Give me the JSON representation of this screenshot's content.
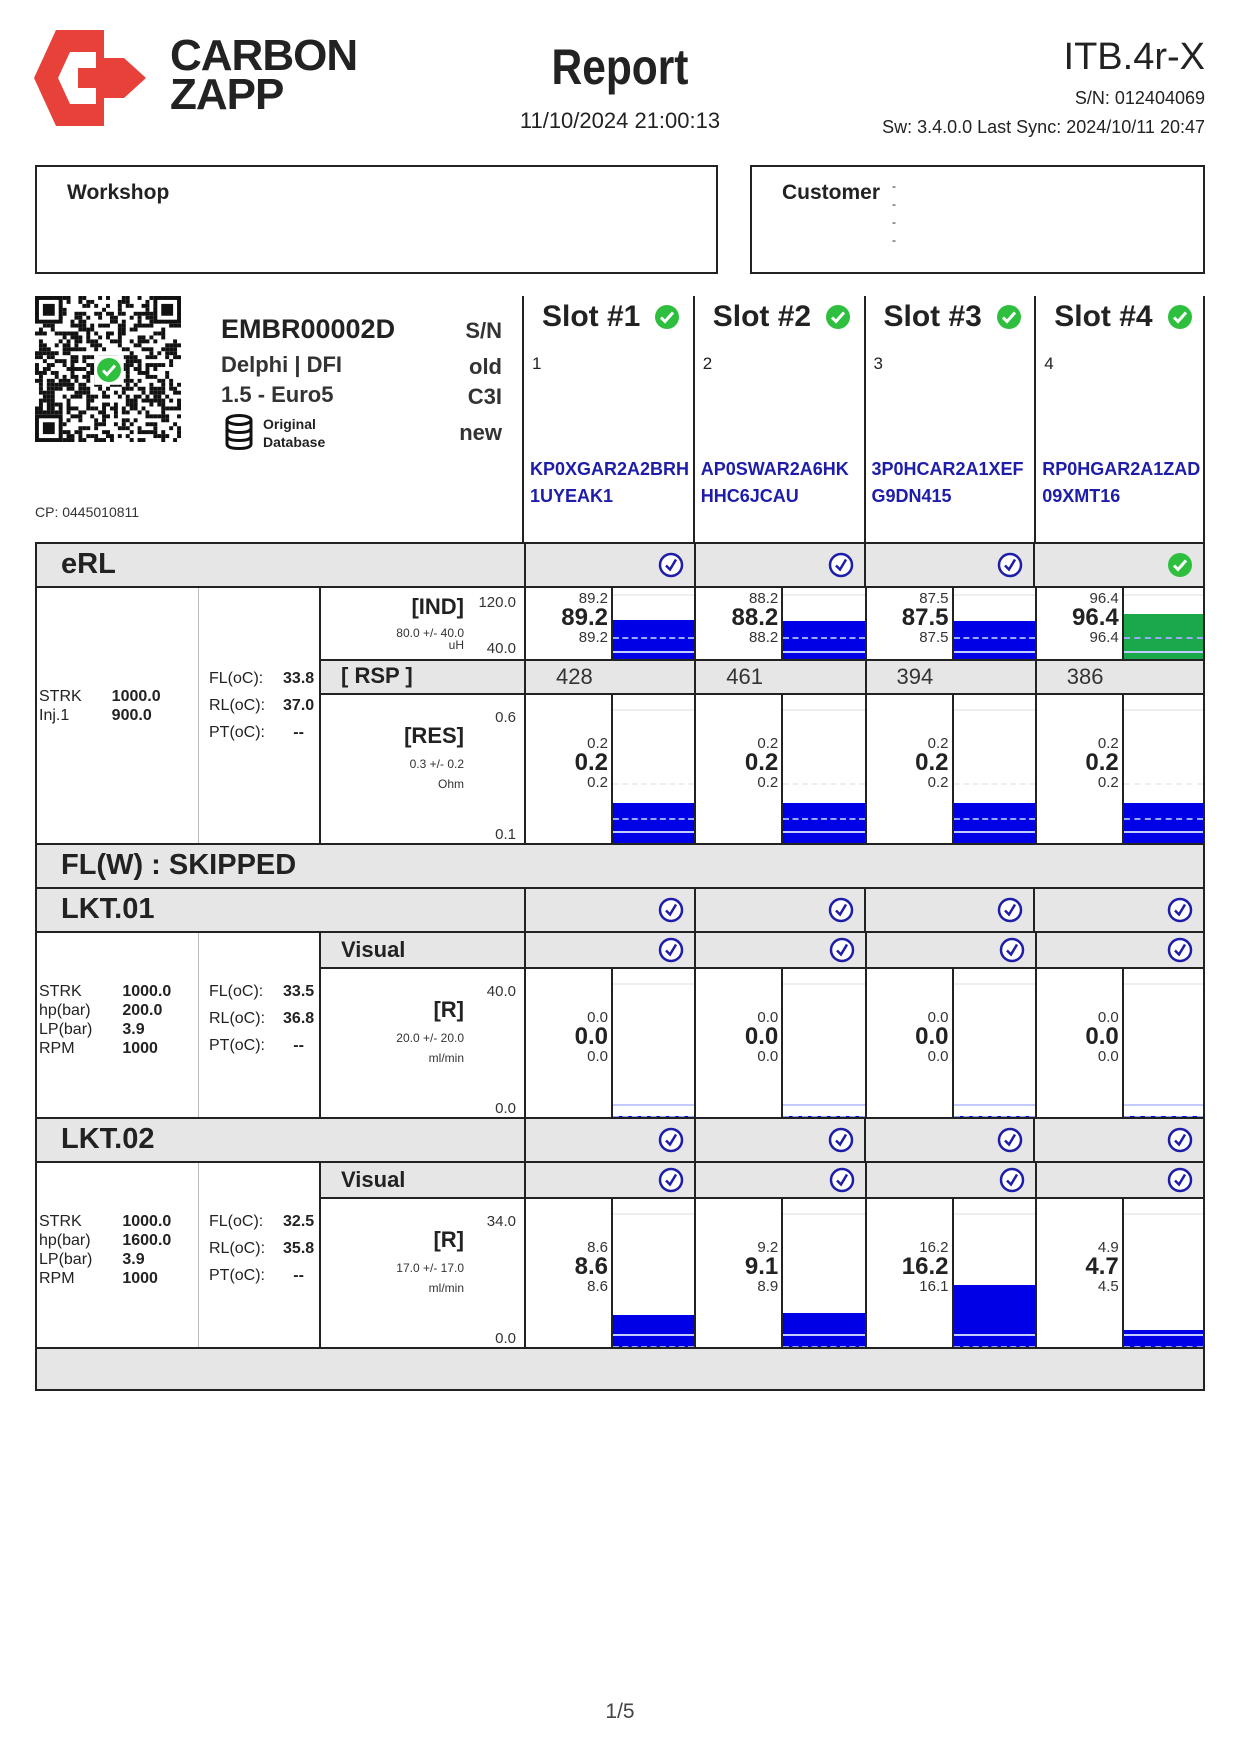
{
  "header": {
    "brand_line1": "CARBON",
    "brand_line2": "ZAPP",
    "brand_color": "#e8413a",
    "title": "Report",
    "date": "11/10/2024 21:00:13",
    "device": "ITB.4r-X",
    "serial": "S/N: 012404069",
    "software": "Sw: 3.4.0.0 Last Sync: 2024/10/11 20:47"
  },
  "workshop": {
    "label": "Workshop"
  },
  "customer": {
    "label": "Customer",
    "lines": [
      "-",
      "-",
      "-",
      "-"
    ]
  },
  "injector": {
    "code": "EMBR00002D",
    "brand": "Delphi | DFI",
    "engine": "1.5 - Euro5",
    "db_line1": "Original",
    "db_line2": "Database",
    "col_labels": [
      "S/N",
      "old",
      "C3I",
      "new"
    ],
    "cp": "CP: 0445010811",
    "qr_verified": true
  },
  "slots": [
    {
      "label": "Slot #1",
      "number": "1",
      "code": "KP0XGAR2A2BRH1UYEAK1",
      "status": "ok"
    },
    {
      "label": "Slot #2",
      "number": "2",
      "code": "AP0SWAR2A6HKHHC6JCAU",
      "status": "ok"
    },
    {
      "label": "Slot #3",
      "number": "3",
      "code": "3P0HCAR2A1XEFG9DN415",
      "status": "ok"
    },
    {
      "label": "Slot #4",
      "number": "4",
      "code": "RP0HGAR2A1ZAD09XMT16",
      "status": "ok"
    }
  ],
  "erl": {
    "title": "eRL",
    "slot_status": [
      "checked",
      "checked",
      "checked",
      "ok"
    ],
    "params": [
      [
        "STRK",
        "1000.0"
      ],
      [
        "Inj.1",
        "900.0"
      ]
    ],
    "temps": [
      [
        "FL(oC):",
        "33.8"
      ],
      [
        "RL(oC):",
        "37.0"
      ],
      [
        "PT(oC):",
        "--"
      ]
    ],
    "ind": {
      "label": "[IND]",
      "spec": "80.0 +/- 40.0",
      "unit": "uH",
      "max": "120.0",
      "min": "40.0",
      "values": [
        {
          "hi": "89.2",
          "val": "89.2",
          "lo": "89.2",
          "fill": 89.2,
          "color": "#0000e6"
        },
        {
          "hi": "88.2",
          "val": "88.2",
          "lo": "88.2",
          "fill": 88.2,
          "color": "#0000e6"
        },
        {
          "hi": "87.5",
          "val": "87.5",
          "lo": "87.5",
          "fill": 87.5,
          "color": "#0000e6"
        },
        {
          "hi": "96.4",
          "val": "96.4",
          "lo": "96.4",
          "fill": 96.4,
          "color": "#1aa84a"
        }
      ]
    },
    "rsp": {
      "label": "[ RSP ]",
      "values": [
        "428",
        "461",
        "394",
        "386"
      ]
    },
    "res": {
      "label": "[RES]",
      "spec": "0.3 +/- 0.2",
      "unit": "Ohm",
      "max": "0.6",
      "min": "0.1",
      "values": [
        {
          "hi": "0.2",
          "val": "0.2",
          "lo": "0.2",
          "fill": 0.2
        },
        {
          "hi": "0.2",
          "val": "0.2",
          "lo": "0.2",
          "fill": 0.2
        },
        {
          "hi": "0.2",
          "val": "0.2",
          "lo": "0.2",
          "fill": 0.2
        },
        {
          "hi": "0.2",
          "val": "0.2",
          "lo": "0.2",
          "fill": 0.2
        }
      ]
    }
  },
  "flw": {
    "title": "FL(W) : SKIPPED"
  },
  "lkt": [
    {
      "title": "LKT.01",
      "slot_status": [
        "checked",
        "checked",
        "checked",
        "checked"
      ],
      "visual_label": "Visual",
      "visual_status": [
        "checked",
        "checked",
        "checked",
        "checked"
      ],
      "params": [
        [
          "STRK",
          "1000.0"
        ],
        [
          "hp(bar)",
          "200.0"
        ],
        [
          "LP(bar)",
          "3.9"
        ],
        [
          "RPM",
          "1000"
        ]
      ],
      "temps": [
        [
          "FL(oC):",
          "33.5"
        ],
        [
          "RL(oC):",
          "36.8"
        ],
        [
          "PT(oC):",
          "--"
        ]
      ],
      "r": {
        "label": "[R]",
        "spec": "20.0 +/- 20.0",
        "unit": "ml/min",
        "max": "40.0",
        "min": "0.0",
        "values": [
          {
            "hi": "0.0",
            "val": "0.0",
            "lo": "0.0",
            "fill": 0.0
          },
          {
            "hi": "0.0",
            "val": "0.0",
            "lo": "0.0",
            "fill": 0.0
          },
          {
            "hi": "0.0",
            "val": "0.0",
            "lo": "0.0",
            "fill": 0.0
          },
          {
            "hi": "0.0",
            "val": "0.0",
            "lo": "0.0",
            "fill": 0.0
          }
        ]
      }
    },
    {
      "title": "LKT.02",
      "slot_status": [
        "checked",
        "checked",
        "checked",
        "checked"
      ],
      "visual_label": "Visual",
      "visual_status": [
        "checked",
        "checked",
        "checked",
        "checked"
      ],
      "params": [
        [
          "STRK",
          "1000.0"
        ],
        [
          "hp(bar)",
          "1600.0"
        ],
        [
          "LP(bar)",
          "3.9"
        ],
        [
          "RPM",
          "1000"
        ]
      ],
      "temps": [
        [
          "FL(oC):",
          "32.5"
        ],
        [
          "RL(oC):",
          "35.8"
        ],
        [
          "PT(oC):",
          "--"
        ]
      ],
      "r": {
        "label": "[R]",
        "spec": "17.0 +/- 17.0",
        "unit": "ml/min",
        "max": "34.0",
        "min": "0.0",
        "values": [
          {
            "hi": "8.6",
            "val": "8.6",
            "lo": "8.6",
            "fill": 8.6
          },
          {
            "hi": "9.2",
            "val": "9.1",
            "lo": "8.9",
            "fill": 9.1
          },
          {
            "hi": "16.2",
            "val": "16.2",
            "lo": "16.1",
            "fill": 16.2
          },
          {
            "hi": "4.9",
            "val": "4.7",
            "lo": "4.5",
            "fill": 4.7
          }
        ]
      }
    }
  ],
  "colors": {
    "ok_green": "#2fbf3f",
    "check_blue": "#1d1daa",
    "bar_blue": "#0000e6",
    "bar_green": "#1aa84a",
    "section_gray": "#e6e6e6"
  },
  "footer": {
    "page": "1/5"
  }
}
